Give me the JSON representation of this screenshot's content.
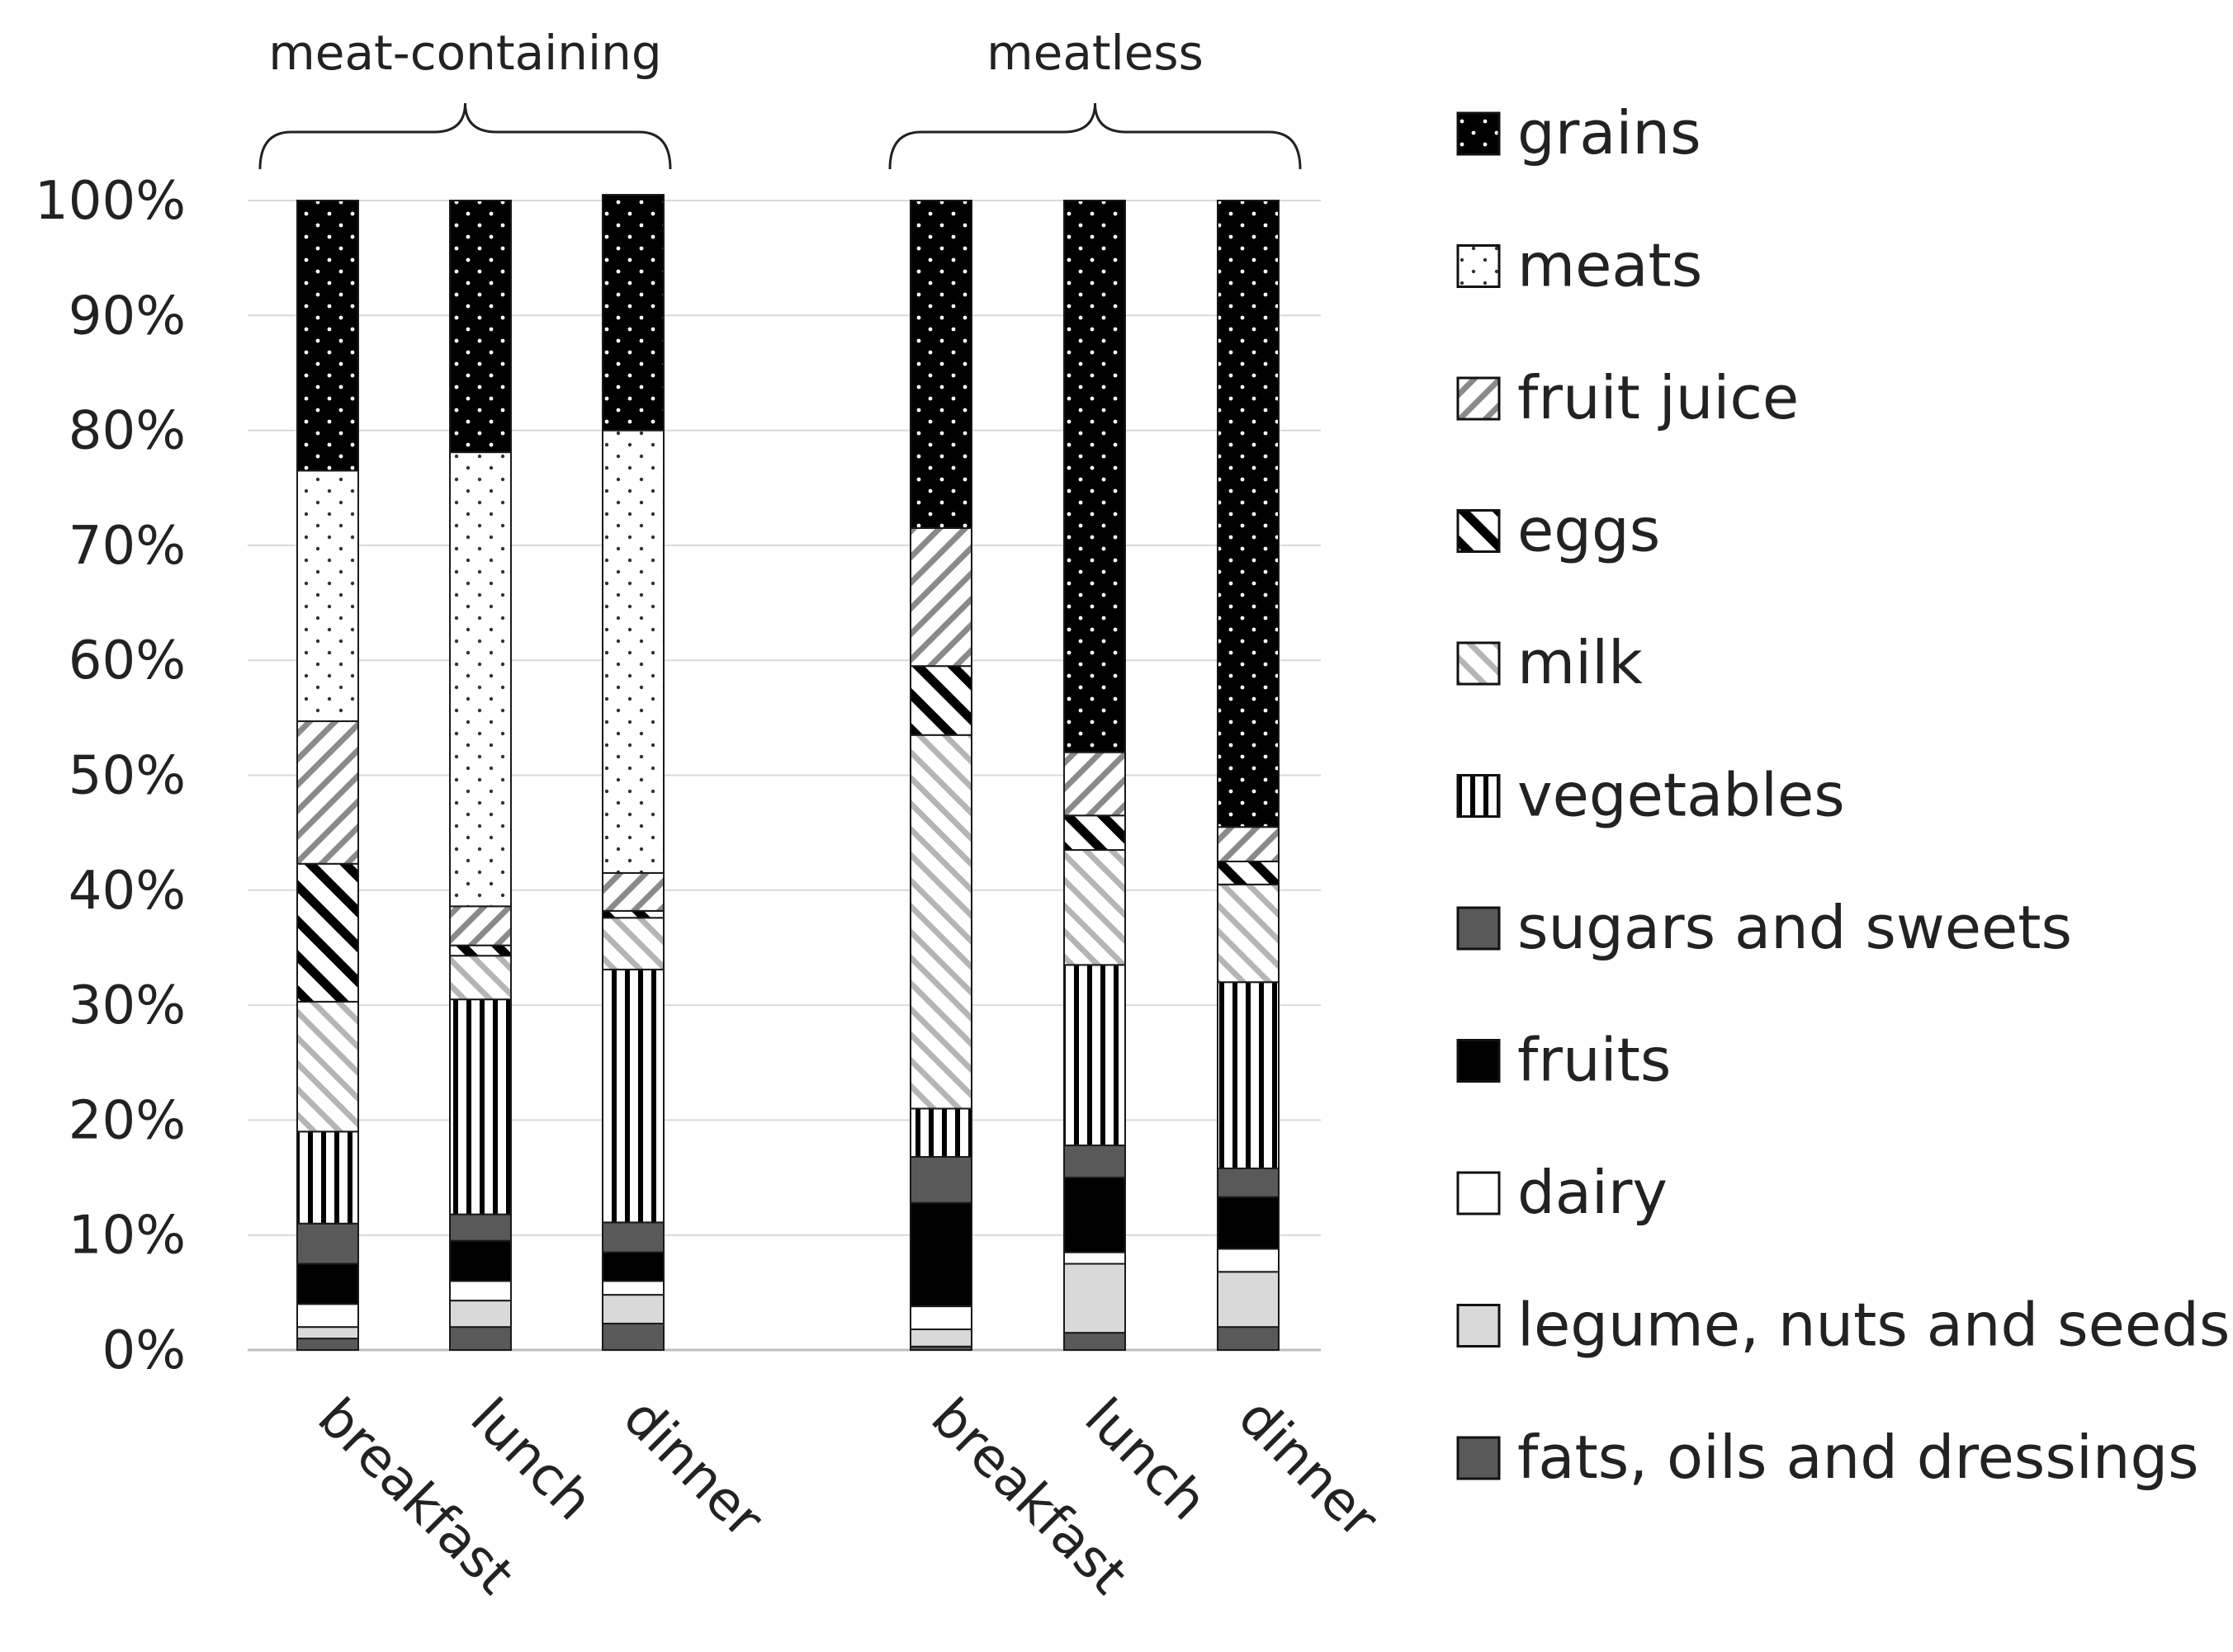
{
  "chart_data": {
    "type": "bar",
    "stacked": true,
    "percent_axis": true,
    "title": "",
    "xlabel": "",
    "ylabel": "",
    "ylim": [
      0,
      100
    ],
    "yticks": [
      "0%",
      "10%",
      "20%",
      "30%",
      "40%",
      "50%",
      "60%",
      "70%",
      "80%",
      "90%",
      "100%"
    ],
    "grid": true,
    "legend_position": "right",
    "groups": [
      {
        "label": "meat-containing",
        "categories": [
          "breakfast",
          "lunch",
          "dinner"
        ]
      },
      {
        "label": "meatless",
        "categories": [
          "breakfast",
          "lunch",
          "dinner"
        ]
      }
    ],
    "categories": [
      "breakfast",
      "lunch",
      "dinner",
      "breakfast",
      "lunch",
      "dinner"
    ],
    "series": [
      {
        "name": "fats, oils and dressings",
        "pattern": "solid-dark",
        "values": [
          1.0,
          2.0,
          2.3,
          0.3,
          1.5,
          2.0
        ]
      },
      {
        "name": "legume, nuts and seeds",
        "pattern": "solid-light",
        "values": [
          1.0,
          2.3,
          2.5,
          1.5,
          6.0,
          4.8
        ]
      },
      {
        "name": "dairy",
        "pattern": "white",
        "values": [
          2.0,
          1.7,
          1.2,
          2.0,
          1.0,
          2.0
        ]
      },
      {
        "name": "fruits",
        "pattern": "black",
        "values": [
          3.5,
          3.5,
          2.5,
          9.0,
          6.5,
          4.5
        ]
      },
      {
        "name": "sugars and sweets",
        "pattern": "solid-dark",
        "values": [
          3.5,
          2.3,
          2.6,
          4.0,
          2.8,
          2.5
        ]
      },
      {
        "name": "vegetables",
        "pattern": "vertical",
        "values": [
          8.0,
          18.7,
          22.0,
          4.2,
          15.7,
          16.2
        ]
      },
      {
        "name": "milk",
        "pattern": "diag-light",
        "values": [
          11.3,
          3.8,
          4.5,
          32.5,
          10.0,
          8.5
        ]
      },
      {
        "name": "eggs",
        "pattern": "diag-bold",
        "values": [
          12.0,
          0.9,
          0.6,
          6.0,
          3.0,
          2.0
        ]
      },
      {
        "name": "fruit juice",
        "pattern": "diag-reverse",
        "values": [
          12.4,
          3.4,
          3.3,
          12.0,
          5.5,
          3.0
        ]
      },
      {
        "name": "meats",
        "pattern": "dots-white",
        "values": [
          21.8,
          39.5,
          38.5,
          0,
          0,
          0
        ]
      },
      {
        "name": "grains",
        "pattern": "dots-black",
        "values": [
          23.5,
          21.9,
          20.5,
          28.5,
          48.0,
          54.5
        ]
      }
    ],
    "legend": [
      "grains",
      "meats",
      "fruit juice",
      "eggs",
      "milk",
      "vegetables",
      "sugars and sweets",
      "fruits",
      "dairy",
      "legume, nuts and seeds",
      "fats, oils and dressings"
    ],
    "colors": {
      "grid": "#d9d9d9",
      "axis": "#bfbfbf",
      "dark": "#595959",
      "light": "#d9d9d9",
      "black": "#000000",
      "outline": "#1a1a1a"
    }
  }
}
